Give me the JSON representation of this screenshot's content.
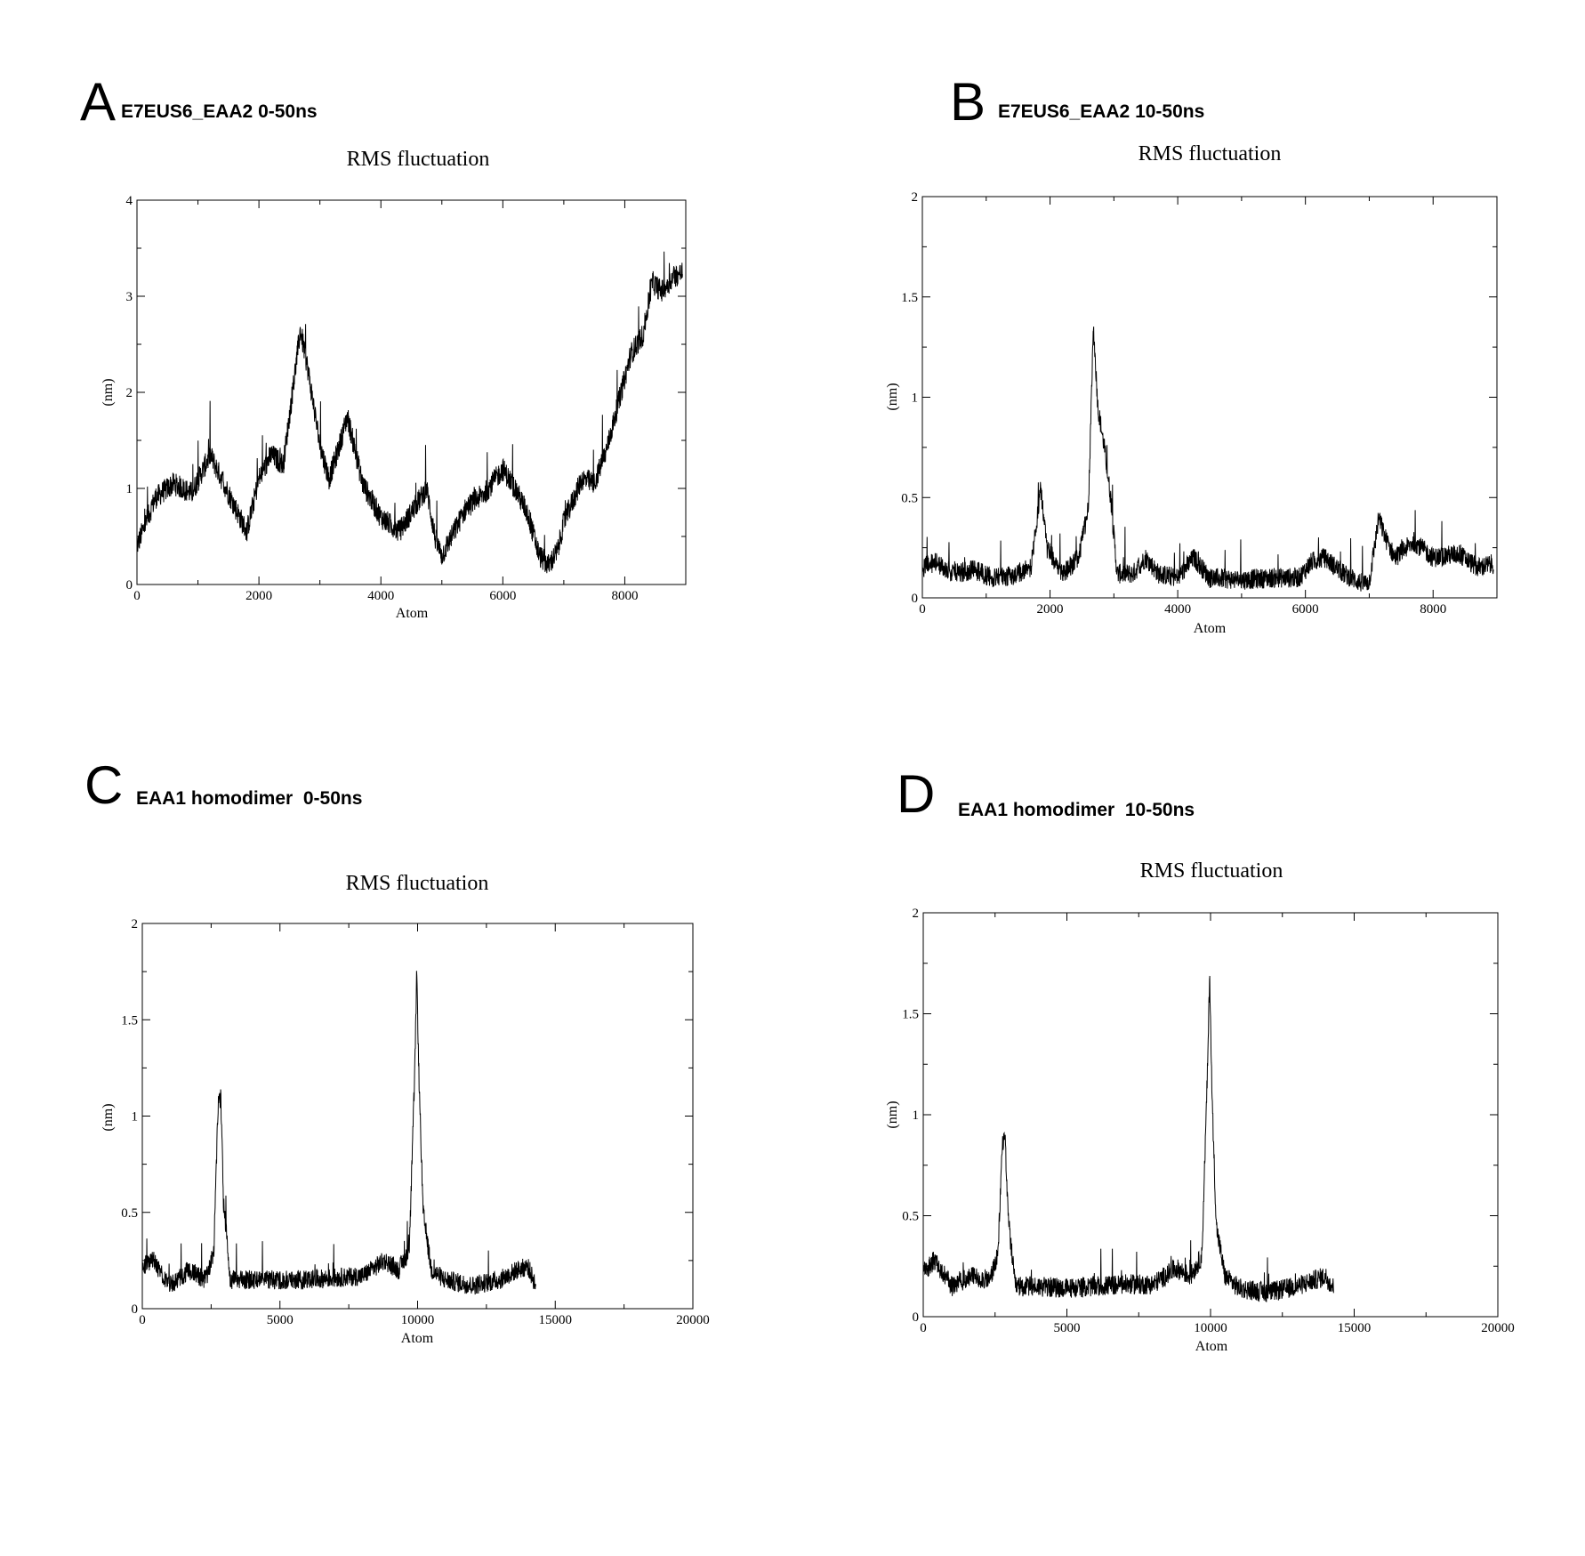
{
  "panels": [
    {
      "letter": "A",
      "subtitle": "E7EUS6_EAA2 0-50ns",
      "chart_data": {
        "type": "line",
        "title": "RMS fluctuation",
        "xlabel": "Atom",
        "ylabel": "(nm)",
        "xlim": [
          0,
          9000
        ],
        "ylim": [
          0,
          4
        ],
        "xticks": [
          0,
          2000,
          4000,
          6000,
          8000
        ],
        "xtick_labels": [
          "0",
          "2000",
          "4000",
          "6000",
          "8000"
        ],
        "yticks": [
          0,
          1,
          2,
          3,
          4
        ],
        "ytick_labels": [
          "0",
          "1",
          "2",
          "3",
          "4"
        ],
        "noise": 0.12,
        "x": [
          0,
          300,
          600,
          900,
          1200,
          1500,
          1800,
          2000,
          2200,
          2400,
          2550,
          2680,
          2800,
          3000,
          3150,
          3300,
          3450,
          3700,
          4000,
          4300,
          4600,
          4750,
          4900,
          5000,
          5200,
          5400,
          5700,
          6000,
          6200,
          6400,
          6600,
          6750,
          6900,
          7000,
          7300,
          7500,
          7700,
          7900,
          8100,
          8300,
          8450,
          8600,
          8800,
          8950
        ],
        "y": [
          0.4,
          0.9,
          1.05,
          0.95,
          1.35,
          0.95,
          0.55,
          1.1,
          1.35,
          1.25,
          2.0,
          2.65,
          2.25,
          1.45,
          1.1,
          1.4,
          1.75,
          1.05,
          0.7,
          0.55,
          0.85,
          1.0,
          0.45,
          0.3,
          0.55,
          0.8,
          0.95,
          1.2,
          1.0,
          0.75,
          0.3,
          0.2,
          0.35,
          0.65,
          1.1,
          1.05,
          1.4,
          1.9,
          2.4,
          2.6,
          3.15,
          3.05,
          3.2,
          3.25
        ]
      }
    },
    {
      "letter": "B",
      "subtitle": "E7EUS6_EAA2 10-50ns",
      "chart_data": {
        "type": "line",
        "title": "RMS fluctuation",
        "xlabel": "Atom",
        "ylabel": "(nm)",
        "xlim": [
          0,
          9000
        ],
        "ylim": [
          0,
          2
        ],
        "xticks": [
          0,
          2000,
          4000,
          6000,
          8000
        ],
        "xtick_labels": [
          "0",
          "2000",
          "4000",
          "6000",
          "8000"
        ],
        "yticks": [
          0,
          0.5,
          1,
          1.5,
          2
        ],
        "ytick_labels": [
          "0",
          "0.5",
          "1",
          "1.5",
          "2"
        ],
        "noise": 0.05,
        "x": [
          0,
          200,
          500,
          800,
          1100,
          1400,
          1700,
          1800,
          1850,
          1950,
          2200,
          2450,
          2600,
          2680,
          2750,
          2850,
          2950,
          3050,
          3300,
          3500,
          3700,
          4000,
          4250,
          4500,
          5000,
          5500,
          5900,
          6100,
          6300,
          6600,
          6900,
          7000,
          7150,
          7250,
          7400,
          7700,
          8000,
          8400,
          8700,
          8950
        ],
        "y": [
          0.15,
          0.18,
          0.12,
          0.14,
          0.1,
          0.11,
          0.15,
          0.4,
          0.55,
          0.25,
          0.12,
          0.2,
          0.45,
          1.35,
          0.95,
          0.75,
          0.5,
          0.12,
          0.12,
          0.2,
          0.12,
          0.1,
          0.2,
          0.1,
          0.09,
          0.1,
          0.1,
          0.18,
          0.2,
          0.12,
          0.07,
          0.08,
          0.4,
          0.3,
          0.2,
          0.28,
          0.2,
          0.22,
          0.15,
          0.17
        ]
      }
    },
    {
      "letter": "C",
      "subtitle": "EAA1 homodimer  0-50ns",
      "chart_data": {
        "type": "line",
        "title": "RMS fluctuation",
        "xlabel": "Atom",
        "ylabel": "(nm)",
        "xlim": [
          0,
          20000
        ],
        "ylim": [
          0,
          2
        ],
        "xticks": [
          0,
          5000,
          10000,
          15000,
          20000
        ],
        "xtick_labels": [
          "0",
          "5000",
          "10000",
          "15000",
          "20000"
        ],
        "yticks": [
          0,
          0.5,
          1,
          1.5,
          2
        ],
        "ytick_labels": [
          "0",
          "0.5",
          "1",
          "1.5",
          "2"
        ],
        "noise": 0.05,
        "x": [
          0,
          400,
          1000,
          1700,
          2300,
          2600,
          2750,
          2850,
          2950,
          3200,
          4000,
          5000,
          6000,
          7000,
          8000,
          8800,
          9300,
          9700,
          9900,
          9970,
          10050,
          10200,
          10500,
          11000,
          12000,
          13000,
          13600,
          14000,
          14300
        ],
        "y": [
          0.22,
          0.25,
          0.12,
          0.2,
          0.15,
          0.3,
          1.05,
          1.1,
          0.55,
          0.15,
          0.15,
          0.15,
          0.15,
          0.16,
          0.17,
          0.25,
          0.2,
          0.3,
          1.25,
          1.75,
          1.2,
          0.5,
          0.2,
          0.15,
          0.12,
          0.15,
          0.2,
          0.22,
          0.12
        ]
      }
    },
    {
      "letter": "D",
      "subtitle": "EAA1 homodimer  10-50ns",
      "chart_data": {
        "type": "line",
        "title": "RMS fluctuation",
        "xlabel": "Atom",
        "ylabel": "(nm)",
        "xlim": [
          0,
          20000
        ],
        "ylim": [
          0,
          2
        ],
        "xticks": [
          0,
          5000,
          10000,
          15000,
          20000
        ],
        "xtick_labels": [
          "0",
          "5000",
          "10000",
          "15000",
          "20000"
        ],
        "yticks": [
          0,
          0.5,
          1,
          1.5,
          2
        ],
        "ytick_labels": [
          "0",
          "0.5",
          "1",
          "1.5",
          "2"
        ],
        "noise": 0.05,
        "x": [
          0,
          400,
          1000,
          1700,
          2300,
          2600,
          2750,
          2850,
          2950,
          3200,
          4000,
          5000,
          6000,
          7000,
          8000,
          8800,
          9300,
          9700,
          9900,
          9970,
          10050,
          10200,
          10500,
          11000,
          12000,
          13000,
          13600,
          14000,
          14300
        ],
        "y": [
          0.22,
          0.28,
          0.15,
          0.2,
          0.18,
          0.3,
          0.85,
          0.9,
          0.5,
          0.15,
          0.15,
          0.14,
          0.15,
          0.16,
          0.16,
          0.24,
          0.2,
          0.3,
          1.25,
          1.7,
          1.1,
          0.45,
          0.2,
          0.14,
          0.12,
          0.15,
          0.18,
          0.2,
          0.14
        ]
      }
    }
  ]
}
